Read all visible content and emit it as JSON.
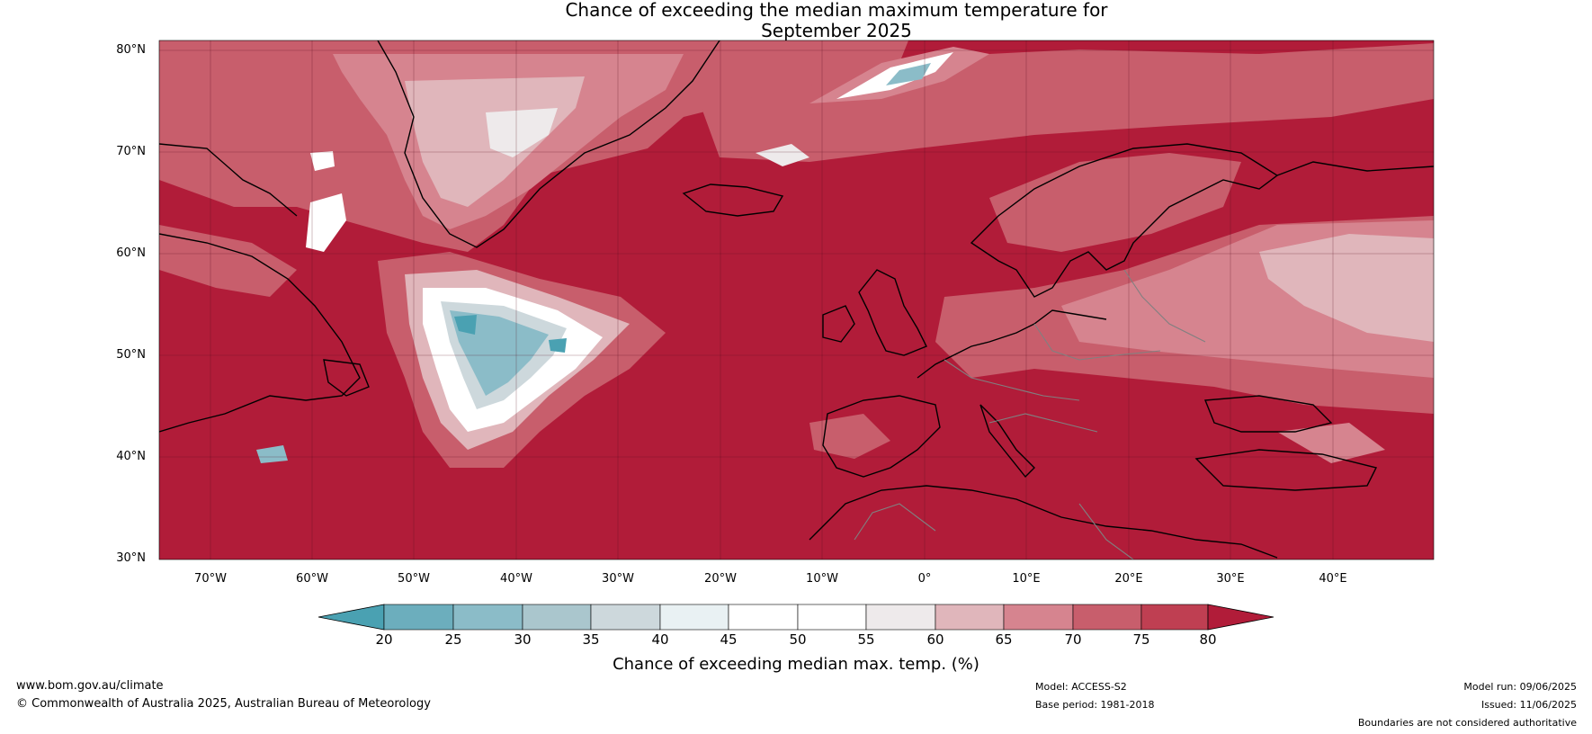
{
  "title_line1": "Chance of exceeding the median maximum temperature for",
  "title_line2": "September 2025",
  "lat_labels": [
    "80°N",
    "70°N",
    "60°N",
    "50°N",
    "40°N",
    "30°N"
  ],
  "lon_labels": [
    "70°W",
    "60°W",
    "50°W",
    "40°W",
    "30°W",
    "20°W",
    "10°W",
    "0°",
    "10°E",
    "20°E",
    "30°E",
    "40°E"
  ],
  "colorbar": {
    "ticks": [
      "20",
      "25",
      "30",
      "35",
      "40",
      "45",
      "50",
      "55",
      "60",
      "65",
      "70",
      "75",
      "80"
    ],
    "colors": [
      "#4aa1b2",
      "#6caebd",
      "#8bbcc8",
      "#aac6cd",
      "#cdd8dc",
      "#e9f1f3",
      "#ffffff",
      "#ffffff",
      "#eeeaeb",
      "#e0b6bb",
      "#d6848f",
      "#c85e6c",
      "#bf3f52",
      "#b11c39"
    ],
    "title": "Chance of exceeding median max. temp. (%)"
  },
  "footer": {
    "url": "www.bom.gov.au/climate",
    "copyright": "© Commonwealth of Australia 2025, Australian Bureau of Meteorology",
    "model": "Model: ACCESS-S2",
    "base_period": "Base period: 1981-2018",
    "model_run": "Model run: 09/06/2025",
    "issued": "Issued: 11/06/2025",
    "disclaimer": "Boundaries are not considered authoritative"
  },
  "map": {
    "background_color": "#b11c39",
    "coastline_color": "#000000",
    "border_color": "#808080"
  }
}
